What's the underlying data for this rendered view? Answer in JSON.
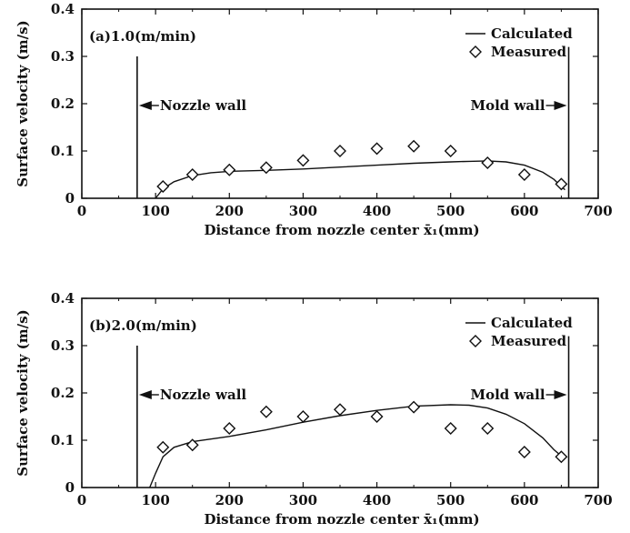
{
  "chart_data": [
    {
      "type": "line",
      "panel_label": "(a)1.0(m/min)",
      "xlabel": "Distance from nozzle center x̄₁(mm)",
      "ylabel": "Surface velocity (m/s)",
      "xlim": [
        0,
        700
      ],
      "ylim": [
        0,
        0.4
      ],
      "xticks": [
        0,
        100,
        200,
        300,
        400,
        500,
        600,
        700
      ],
      "yticks": [
        0,
        0.1,
        0.2,
        0.3,
        0.4
      ],
      "xtick_labels": [
        "0",
        "100",
        "200",
        "300",
        "400",
        "500",
        "600",
        "700"
      ],
      "ytick_labels": [
        "0",
        "0.1",
        "0.2",
        "0.3",
        "0.4"
      ],
      "legend_position": "top-right",
      "series": [
        {
          "name": "Calculated",
          "style": "line",
          "x": [
            100,
            110,
            125,
            150,
            175,
            200,
            250,
            300,
            350,
            400,
            450,
            500,
            525,
            550,
            575,
            600,
            625,
            640,
            650,
            655
          ],
          "y": [
            0.0,
            0.02,
            0.035,
            0.048,
            0.054,
            0.057,
            0.059,
            0.062,
            0.066,
            0.07,
            0.074,
            0.077,
            0.078,
            0.079,
            0.077,
            0.07,
            0.055,
            0.04,
            0.025,
            0.018
          ]
        },
        {
          "name": "Measured",
          "style": "marker",
          "marker": "diamond",
          "x": [
            110,
            150,
            200,
            250,
            300,
            350,
            400,
            450,
            500,
            550,
            600,
            650
          ],
          "y": [
            0.025,
            0.05,
            0.06,
            0.065,
            0.08,
            0.1,
            0.105,
            0.11,
            0.1,
            0.075,
            0.05,
            0.03
          ]
        }
      ],
      "annotations": {
        "nozzle_wall": {
          "label": "Nozzle wall",
          "x": 75,
          "top": 0.3
        },
        "mold_wall": {
          "label": "Mold wall",
          "x": 660,
          "top": 0.32
        }
      }
    },
    {
      "type": "line",
      "panel_label": "(b)2.0(m/min)",
      "xlabel": "Distance from nozzle center x̄₁(mm)",
      "ylabel": "Surface velocity (m/s)",
      "xlim": [
        0,
        700
      ],
      "ylim": [
        0,
        0.4
      ],
      "xticks": [
        0,
        100,
        200,
        300,
        400,
        500,
        600,
        700
      ],
      "yticks": [
        0,
        0.1,
        0.2,
        0.3,
        0.4
      ],
      "xtick_labels": [
        "0",
        "100",
        "200",
        "300",
        "400",
        "500",
        "600",
        "700"
      ],
      "ytick_labels": [
        "0",
        "0.1",
        "0.2",
        "0.3",
        "0.4"
      ],
      "legend_position": "top-right",
      "series": [
        {
          "name": "Calculated",
          "style": "line",
          "x": [
            92,
            100,
            110,
            125,
            150,
            200,
            250,
            300,
            350,
            400,
            450,
            500,
            525,
            550,
            575,
            600,
            625,
            640,
            655
          ],
          "y": [
            0.0,
            0.03,
            0.065,
            0.085,
            0.097,
            0.108,
            0.122,
            0.138,
            0.152,
            0.163,
            0.172,
            0.175,
            0.174,
            0.168,
            0.155,
            0.135,
            0.105,
            0.08,
            0.06
          ]
        },
        {
          "name": "Measured",
          "style": "marker",
          "marker": "diamond",
          "x": [
            110,
            150,
            200,
            250,
            300,
            350,
            400,
            450,
            500,
            550,
            600,
            650
          ],
          "y": [
            0.085,
            0.09,
            0.125,
            0.16,
            0.15,
            0.165,
            0.15,
            0.17,
            0.125,
            0.125,
            0.075,
            0.065
          ]
        }
      ],
      "annotations": {
        "nozzle_wall": {
          "label": "Nozzle wall",
          "x": 75,
          "top": 0.3
        },
        "mold_wall": {
          "label": "Mold wall",
          "x": 660,
          "top": 0.32
        }
      }
    }
  ]
}
